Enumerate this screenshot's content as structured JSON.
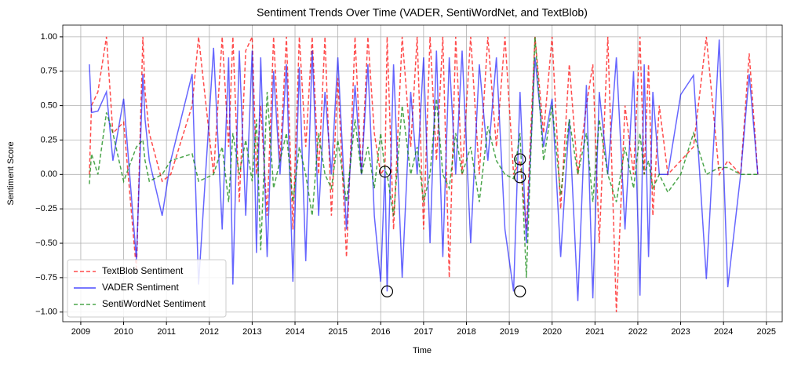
{
  "chart_data": {
    "type": "line",
    "title": "Sentiment Trends Over Time (VADER, SentiWordNet, and TextBlob)",
    "x_label": "Time",
    "y_label": "Sentiment Score",
    "x": [
      2009.2,
      2009.25,
      2009.4,
      2009.6,
      2009.75,
      2010.0,
      2010.3,
      2010.45,
      2010.5,
      2010.6,
      2010.9,
      2011.1,
      2011.6,
      2011.75,
      2012.1,
      2012.3,
      2012.45,
      2012.55,
      2012.7,
      2012.85,
      2013.0,
      2013.1,
      2013.2,
      2013.35,
      2013.5,
      2013.65,
      2013.8,
      2013.95,
      2014.1,
      2014.25,
      2014.4,
      2014.55,
      2014.7,
      2014.85,
      2015.0,
      2015.2,
      2015.4,
      2015.55,
      2015.7,
      2015.85,
      2016.0,
      2016.1,
      2016.15,
      2016.3,
      2016.5,
      2016.7,
      2016.85,
      2017.0,
      2017.15,
      2017.3,
      2017.45,
      2017.6,
      2017.75,
      2017.9,
      2018.1,
      2018.3,
      2018.5,
      2018.7,
      2018.9,
      2019.1,
      2019.25,
      2019.4,
      2019.6,
      2019.8,
      2020.0,
      2020.2,
      2020.4,
      2020.6,
      2020.8,
      2020.95,
      2021.1,
      2021.3,
      2021.5,
      2021.7,
      2021.9,
      2022.05,
      2022.15,
      2022.25,
      2022.35,
      2022.5,
      2022.7,
      2023.0,
      2023.3,
      2023.6,
      2023.9,
      2024.1,
      2024.4,
      2024.6,
      2024.8
    ],
    "series": [
      {
        "name": "TextBlob Sentiment",
        "color": "#ff0000",
        "style": "dashed",
        "values": [
          0.0,
          0.5,
          0.6,
          1.0,
          0.3,
          0.38,
          -0.7,
          1.0,
          0.6,
          0.3,
          -0.05,
          0.0,
          0.5,
          1.0,
          0.0,
          1.0,
          0.2,
          1.0,
          -0.2,
          0.9,
          1.0,
          0.0,
          0.5,
          -0.3,
          1.0,
          0.1,
          1.0,
          -0.4,
          1.0,
          0.2,
          1.0,
          0.0,
          1.0,
          -0.3,
          0.7,
          -0.6,
          1.0,
          0.0,
          1.0,
          0.3,
          0.0,
          0.05,
          1.0,
          -0.4,
          1.0,
          0.2,
          1.0,
          -0.4,
          1.0,
          0.1,
          1.0,
          -0.75,
          1.0,
          0.0,
          1.0,
          0.0,
          1.0,
          0.2,
          1.0,
          0.0,
          0.1,
          -0.4,
          1.0,
          0.3,
          1.0,
          -0.25,
          0.8,
          0.0,
          0.5,
          0.8,
          -0.5,
          1.0,
          -1.0,
          0.5,
          0.0,
          1.0,
          0.0,
          0.8,
          -0.3,
          0.5,
          0.0,
          0.1,
          0.2,
          1.0,
          0.0,
          0.1,
          0.0,
          0.88,
          0.0
        ]
      },
      {
        "name": "VADER Sentiment",
        "color": "#0000ff",
        "style": "solid",
        "values": [
          0.8,
          0.45,
          0.46,
          0.6,
          0.1,
          0.55,
          -0.62,
          0.73,
          0.4,
          0.1,
          -0.3,
          0.1,
          0.73,
          -0.8,
          0.92,
          -0.4,
          0.85,
          -0.8,
          0.9,
          -0.3,
          0.9,
          -0.57,
          0.85,
          -0.6,
          0.75,
          0.0,
          0.8,
          -0.78,
          0.78,
          -0.63,
          0.9,
          -0.3,
          0.6,
          0.0,
          0.85,
          -0.4,
          0.65,
          0.0,
          0.8,
          -0.3,
          -0.78,
          0.05,
          -0.85,
          0.8,
          -0.75,
          0.6,
          0.0,
          0.85,
          -0.5,
          0.9,
          -0.6,
          0.85,
          0.0,
          0.9,
          -0.5,
          0.8,
          0.1,
          0.85,
          -0.4,
          -0.85,
          0.6,
          -0.5,
          0.85,
          0.2,
          0.55,
          -0.6,
          0.4,
          -0.92,
          0.65,
          -0.9,
          0.6,
          0.0,
          0.85,
          -0.4,
          0.75,
          -0.88,
          0.8,
          -0.6,
          0.6,
          0.0,
          0.0,
          0.58,
          0.72,
          -0.76,
          0.98,
          -0.82,
          0.0,
          0.73,
          0.0
        ]
      },
      {
        "name": "SentiWordNet Sentiment",
        "color": "#008000",
        "style": "dashed",
        "values": [
          -0.07,
          0.15,
          0.0,
          0.45,
          0.3,
          -0.05,
          0.2,
          0.25,
          0.1,
          -0.05,
          0.0,
          0.1,
          0.15,
          -0.05,
          0.0,
          0.2,
          -0.2,
          0.3,
          0.0,
          0.25,
          -0.05,
          0.4,
          -0.55,
          0.6,
          -0.1,
          0.1,
          0.3,
          -0.2,
          0.2,
          0.0,
          -0.3,
          0.3,
          0.0,
          -0.1,
          0.25,
          -0.2,
          0.4,
          0.0,
          0.2,
          -0.1,
          0.3,
          0.03,
          0.0,
          -0.3,
          0.5,
          0.0,
          0.2,
          -0.2,
          0.0,
          0.55,
          0.0,
          -0.1,
          0.3,
          0.0,
          0.2,
          -0.2,
          0.35,
          0.1,
          0.0,
          -0.03,
          0.3,
          -0.75,
          1.0,
          0.1,
          0.5,
          -0.15,
          0.4,
          0.0,
          0.3,
          -0.2,
          0.4,
          0.0,
          -0.2,
          0.2,
          -0.1,
          0.3,
          0.0,
          0.1,
          -0.1,
          0.0,
          -0.13,
          0.0,
          0.3,
          0.0,
          0.05,
          0.05,
          0.0,
          0.0,
          0.0
        ]
      }
    ],
    "highlights": [
      {
        "x": 2016.1,
        "y": 0.02
      },
      {
        "x": 2016.15,
        "y": -0.85
      },
      {
        "x": 2019.25,
        "y": 0.11
      },
      {
        "x": 2019.25,
        "y": -0.02
      },
      {
        "x": 2019.25,
        "y": -0.85
      }
    ],
    "xlim": [
      2008.58,
      2025.37
    ],
    "ylim": [
      -1.07,
      1.085
    ],
    "xticks": [
      2009,
      2010,
      2011,
      2012,
      2013,
      2014,
      2015,
      2016,
      2017,
      2018,
      2019,
      2020,
      2021,
      2022,
      2023,
      2024,
      2025
    ],
    "yticks": [
      {
        "value": -1,
        "label": "−1.00"
      },
      {
        "value": -0.75,
        "label": "−0.75"
      },
      {
        "value": -0.5,
        "label": "−0.50"
      },
      {
        "value": -0.25,
        "label": "−0.25"
      },
      {
        "value": 0,
        "label": "0.00"
      },
      {
        "value": 0.25,
        "label": "0.25"
      },
      {
        "value": 0.5,
        "label": "0.50"
      },
      {
        "value": 0.75,
        "label": "0.75"
      },
      {
        "value": 1,
        "label": "1.00"
      }
    ],
    "grid": true,
    "legend": "lower left"
  }
}
